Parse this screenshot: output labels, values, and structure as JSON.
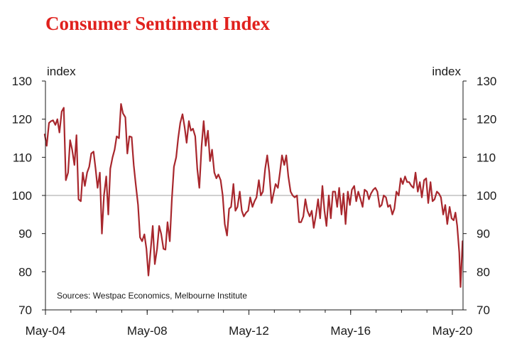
{
  "chart_data": {
    "type": "line",
    "title": "Consumer Sentiment Index",
    "ylabel_left": "index",
    "ylabel_right": "index",
    "source": "Sources: Westpac Economics, Melbourne Institute",
    "ylim": [
      70,
      130
    ],
    "yticks": [
      70,
      80,
      90,
      100,
      110,
      120,
      130
    ],
    "xlim": [
      2004.33,
      2020.33
    ],
    "xticks": [
      {
        "value": 2004.33,
        "label": "May-04"
      },
      {
        "value": 2008.33,
        "label": "May-08"
      },
      {
        "value": 2012.33,
        "label": "May-12"
      },
      {
        "value": 2016.33,
        "label": "May-16"
      },
      {
        "value": 2020.33,
        "label": "May-20"
      }
    ],
    "reference_line": 100,
    "colors": {
      "line": "#a8272d",
      "title": "#e0211d",
      "reference": "#b3b3b3",
      "axis": "#1a1a1a"
    },
    "series": [
      {
        "name": "Consumer Sentiment Index",
        "points": [
          [
            2004.3,
            116
          ],
          [
            2004.38,
            113
          ],
          [
            2004.47,
            119
          ],
          [
            2004.55,
            119.5
          ],
          [
            2004.63,
            119.7
          ],
          [
            2004.72,
            118.5
          ],
          [
            2004.8,
            120
          ],
          [
            2004.88,
            116.5
          ],
          [
            2004.97,
            122
          ],
          [
            2005.05,
            123
          ],
          [
            2005.13,
            104
          ],
          [
            2005.22,
            106
          ],
          [
            2005.3,
            114.5
          ],
          [
            2005.38,
            112
          ],
          [
            2005.47,
            108
          ],
          [
            2005.55,
            115.8
          ],
          [
            2005.63,
            99
          ],
          [
            2005.72,
            98.5
          ],
          [
            2005.8,
            106
          ],
          [
            2005.88,
            102.5
          ],
          [
            2005.97,
            106
          ],
          [
            2006.05,
            107.5
          ],
          [
            2006.13,
            111
          ],
          [
            2006.22,
            111.5
          ],
          [
            2006.3,
            107
          ],
          [
            2006.38,
            102
          ],
          [
            2006.47,
            106
          ],
          [
            2006.55,
            90
          ],
          [
            2006.63,
            100
          ],
          [
            2006.72,
            105
          ],
          [
            2006.8,
            95
          ],
          [
            2006.88,
            107
          ],
          [
            2006.97,
            110
          ],
          [
            2007.05,
            112
          ],
          [
            2007.13,
            115.5
          ],
          [
            2007.22,
            115
          ],
          [
            2007.3,
            124
          ],
          [
            2007.38,
            121.5
          ],
          [
            2007.47,
            120.5
          ],
          [
            2007.55,
            111
          ],
          [
            2007.63,
            115.5
          ],
          [
            2007.72,
            115.3
          ],
          [
            2007.8,
            108
          ],
          [
            2007.88,
            103
          ],
          [
            2007.97,
            97.5
          ],
          [
            2008.05,
            89
          ],
          [
            2008.13,
            88
          ],
          [
            2008.22,
            89.8
          ],
          [
            2008.3,
            86
          ],
          [
            2008.38,
            79
          ],
          [
            2008.47,
            86
          ],
          [
            2008.55,
            92
          ],
          [
            2008.63,
            82
          ],
          [
            2008.72,
            86
          ],
          [
            2008.8,
            92
          ],
          [
            2008.88,
            90
          ],
          [
            2008.97,
            86
          ],
          [
            2009.05,
            85.8
          ],
          [
            2009.13,
            93
          ],
          [
            2009.22,
            88
          ],
          [
            2009.3,
            99
          ],
          [
            2009.38,
            107.5
          ],
          [
            2009.47,
            110
          ],
          [
            2009.55,
            115
          ],
          [
            2009.63,
            119
          ],
          [
            2009.72,
            121.3
          ],
          [
            2009.8,
            118
          ],
          [
            2009.88,
            113.8
          ],
          [
            2009.97,
            119.5
          ],
          [
            2010.05,
            117
          ],
          [
            2010.13,
            117.5
          ],
          [
            2010.22,
            115.5
          ],
          [
            2010.3,
            107
          ],
          [
            2010.38,
            102
          ],
          [
            2010.47,
            113
          ],
          [
            2010.55,
            119.5
          ],
          [
            2010.63,
            113
          ],
          [
            2010.72,
            117
          ],
          [
            2010.8,
            109
          ],
          [
            2010.88,
            112
          ],
          [
            2010.97,
            106
          ],
          [
            2011.05,
            104.5
          ],
          [
            2011.13,
            105.5
          ],
          [
            2011.22,
            104
          ],
          [
            2011.3,
            100
          ],
          [
            2011.38,
            92.5
          ],
          [
            2011.47,
            89.5
          ],
          [
            2011.55,
            96.5
          ],
          [
            2011.63,
            97
          ],
          [
            2011.72,
            103
          ],
          [
            2011.8,
            96
          ],
          [
            2011.88,
            97
          ],
          [
            2011.97,
            101
          ],
          [
            2012.05,
            96
          ],
          [
            2012.13,
            94.5
          ],
          [
            2012.22,
            95.5
          ],
          [
            2012.3,
            96
          ],
          [
            2012.38,
            99.5
          ],
          [
            2012.47,
            97
          ],
          [
            2012.55,
            98.5
          ],
          [
            2012.63,
            99.5
          ],
          [
            2012.72,
            104
          ],
          [
            2012.8,
            100
          ],
          [
            2012.88,
            101
          ],
          [
            2012.97,
            107
          ],
          [
            2013.05,
            110.5
          ],
          [
            2013.13,
            106
          ],
          [
            2013.22,
            98
          ],
          [
            2013.3,
            100.5
          ],
          [
            2013.38,
            103
          ],
          [
            2013.47,
            102
          ],
          [
            2013.55,
            106
          ],
          [
            2013.63,
            110.5
          ],
          [
            2013.72,
            108
          ],
          [
            2013.8,
            110.5
          ],
          [
            2013.88,
            105
          ],
          [
            2013.97,
            101
          ],
          [
            2014.05,
            100
          ],
          [
            2014.13,
            99.5
          ],
          [
            2014.22,
            100
          ],
          [
            2014.3,
            93
          ],
          [
            2014.38,
            93
          ],
          [
            2014.47,
            94.5
          ],
          [
            2014.55,
            99
          ],
          [
            2014.63,
            96
          ],
          [
            2014.72,
            94.5
          ],
          [
            2014.8,
            96
          ],
          [
            2014.88,
            91.5
          ],
          [
            2014.97,
            95
          ],
          [
            2015.05,
            99
          ],
          [
            2015.13,
            94
          ],
          [
            2015.22,
            102.5
          ],
          [
            2015.3,
            96
          ],
          [
            2015.38,
            92
          ],
          [
            2015.47,
            100
          ],
          [
            2015.55,
            94
          ],
          [
            2015.63,
            101
          ],
          [
            2015.72,
            101
          ],
          [
            2015.8,
            97
          ],
          [
            2015.88,
            102
          ],
          [
            2015.97,
            95
          ],
          [
            2016.05,
            100.5
          ],
          [
            2016.13,
            92.5
          ],
          [
            2016.22,
            101
          ],
          [
            2016.3,
            97.5
          ],
          [
            2016.38,
            101.5
          ],
          [
            2016.47,
            102.5
          ],
          [
            2016.55,
            98.5
          ],
          [
            2016.63,
            101
          ],
          [
            2016.72,
            99
          ],
          [
            2016.8,
            97
          ],
          [
            2016.88,
            101.5
          ],
          [
            2016.97,
            101
          ],
          [
            2017.05,
            99
          ],
          [
            2017.13,
            100.5
          ],
          [
            2017.22,
            101.5
          ],
          [
            2017.3,
            102
          ],
          [
            2017.38,
            101
          ],
          [
            2017.47,
            97
          ],
          [
            2017.55,
            97.5
          ],
          [
            2017.63,
            100
          ],
          [
            2017.72,
            99.5
          ],
          [
            2017.8,
            97
          ],
          [
            2017.88,
            97.5
          ],
          [
            2017.97,
            95
          ],
          [
            2018.05,
            96.5
          ],
          [
            2018.13,
            101
          ],
          [
            2018.22,
            100
          ],
          [
            2018.3,
            104.5
          ],
          [
            2018.38,
            103
          ],
          [
            2018.47,
            105
          ],
          [
            2018.55,
            103.5
          ],
          [
            2018.63,
            103.5
          ],
          [
            2018.72,
            102.5
          ],
          [
            2018.8,
            102
          ],
          [
            2018.88,
            106
          ],
          [
            2018.97,
            101
          ],
          [
            2019.05,
            103.5
          ],
          [
            2019.13,
            99.5
          ],
          [
            2019.22,
            104
          ],
          [
            2019.3,
            104.5
          ],
          [
            2019.38,
            98
          ],
          [
            2019.47,
            103.5
          ],
          [
            2019.55,
            98.5
          ],
          [
            2019.63,
            99
          ],
          [
            2019.72,
            101
          ],
          [
            2019.8,
            100.5
          ],
          [
            2019.88,
            99.5
          ],
          [
            2019.97,
            95
          ],
          [
            2020.05,
            97.5
          ],
          [
            2020.13,
            92.5
          ],
          [
            2020.22,
            97
          ],
          [
            2020.3,
            94
          ],
          [
            2020.38,
            93.5
          ],
          [
            2020.45,
            95.5
          ],
          [
            2020.52,
            92
          ],
          [
            2020.6,
            85
          ],
          [
            2020.65,
            76
          ],
          [
            2020.73,
            88
          ]
        ]
      }
    ]
  }
}
